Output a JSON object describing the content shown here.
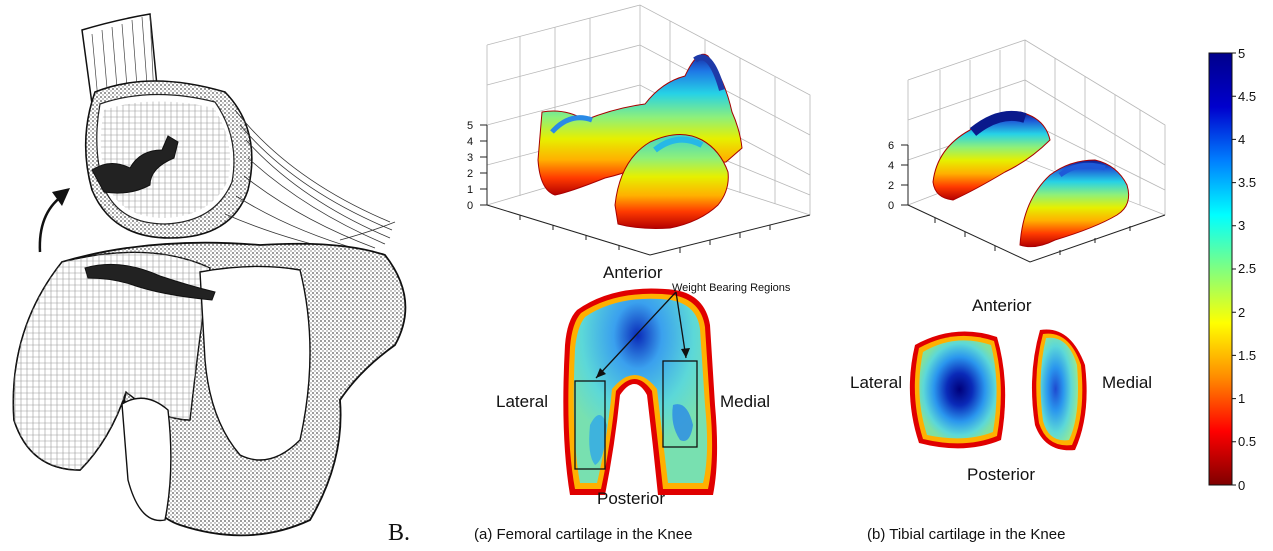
{
  "panel_letter": "B.",
  "femoral": {
    "caption": "(a) Femoral cartilage in the Knee",
    "label_anterior": "Anterior",
    "label_posterior": "Posterior",
    "label_lateral": "Lateral",
    "label_medial": "Medial",
    "annotation": "Weight Bearing Regions",
    "z_ticks": [
      "5",
      "4",
      "3",
      "2",
      "1",
      "0"
    ]
  },
  "tibial": {
    "caption": "(b) Tibial cartilage in the Knee",
    "label_anterior": "Anterior",
    "label_posterior": "Posterior",
    "label_lateral": "Lateral",
    "label_medial": "Medial",
    "z_ticks": [
      "6",
      "4",
      "2",
      "0"
    ]
  },
  "colorbar": {
    "ticks": [
      "5",
      "4.5",
      "4",
      "3.5",
      "3",
      "2.5",
      "2",
      "1.5",
      "1",
      "0.5",
      "0"
    ],
    "colormap": [
      "#7f0000",
      "#ff0000",
      "#ff8c00",
      "#ffff00",
      "#80ff80",
      "#00ffff",
      "#0080ff",
      "#0000cd",
      "#00008b"
    ]
  }
}
